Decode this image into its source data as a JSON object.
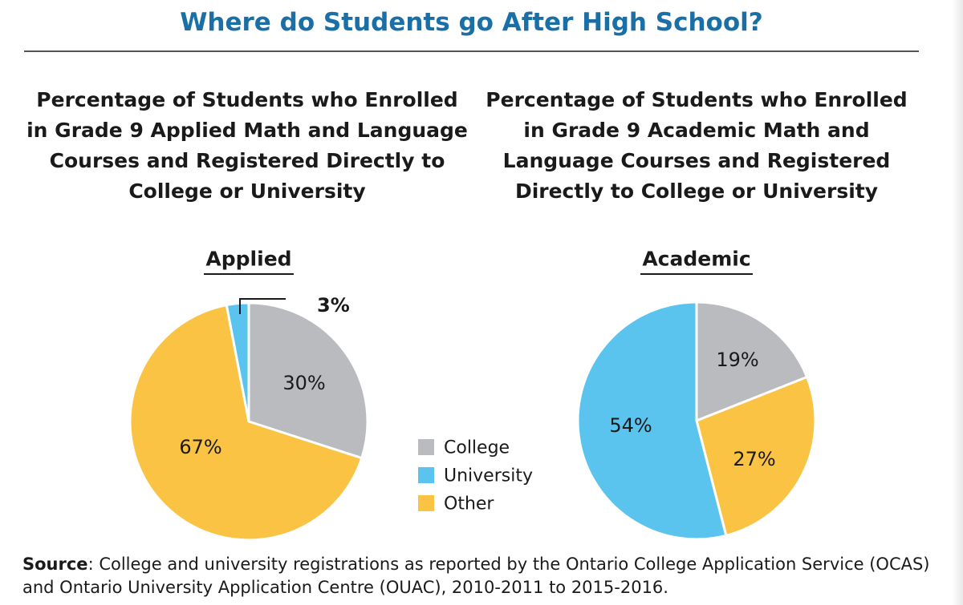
{
  "title": "Where do Students go After High School?",
  "colors": {
    "title": "#1a6fa6",
    "College": "#b9bbbe",
    "University": "#5bc4ee",
    "Other": "#fbc344"
  },
  "chart_data": [
    {
      "type": "pie",
      "title": "Percentage of Students who Enrolled in Grade 9 Applied Math and Language Courses and Registered Directly to College or University",
      "label": "Applied",
      "categories": [
        "College",
        "Other",
        "University"
      ],
      "values": [
        30,
        67,
        3
      ],
      "value_labels": [
        "30%",
        "67%",
        "3%"
      ],
      "start": "12 o'clock, clockwise"
    },
    {
      "type": "pie",
      "title": "Percentage of Students who Enrolled in Grade 9 Academic Math and Language Courses and Registered Directly to College or University",
      "label": "Academic",
      "categories": [
        "College",
        "Other",
        "University"
      ],
      "values": [
        19,
        27,
        54
      ],
      "value_labels": [
        "19%",
        "27%",
        "54%"
      ],
      "start": "12 o'clock, clockwise"
    }
  ],
  "legend": {
    "items": [
      "College",
      "University",
      "Other"
    ]
  },
  "source": {
    "label": "Source",
    "text": ": College and university registrations as reported by the Ontario College Application Service (OCAS) and Ontario University Application Centre (OUAC), 2010-2011 to 2015-2016."
  }
}
